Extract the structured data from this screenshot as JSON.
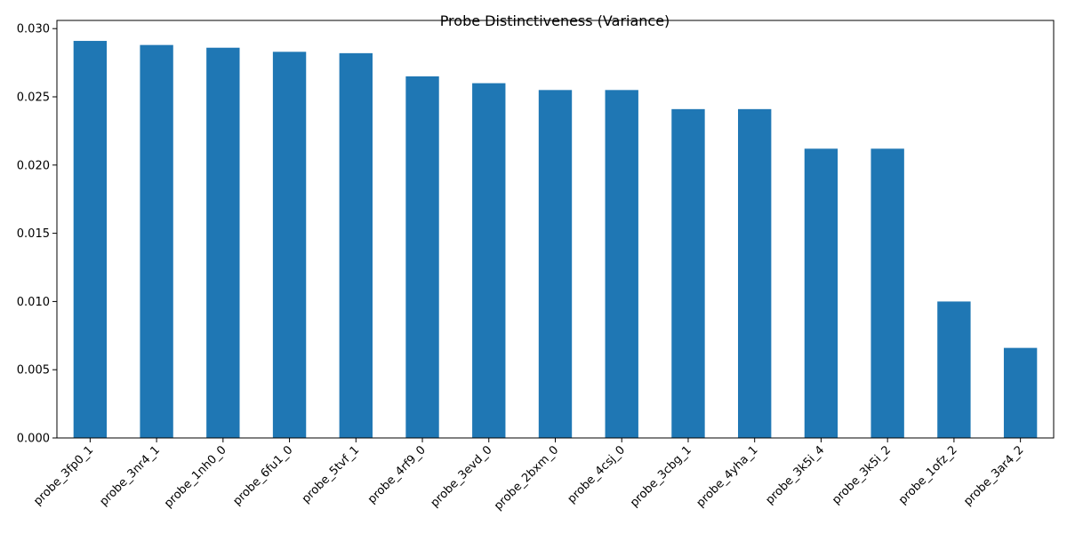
{
  "chart_data": {
    "type": "bar",
    "title": "Probe Distinctiveness (Variance)",
    "xlabel": "",
    "ylabel": "",
    "categories": [
      "probe_3fp0_1",
      "probe_3nr4_1",
      "probe_1nh0_0",
      "probe_6fu1_0",
      "probe_5tvf_1",
      "probe_4rf9_0",
      "probe_3evd_0",
      "probe_2bxm_0",
      "probe_4csj_0",
      "probe_3cbg_1",
      "probe_4yha_1",
      "probe_3k5i_4",
      "probe_3k5i_2",
      "probe_1ofz_2",
      "probe_3ar4_2"
    ],
    "values": [
      0.0291,
      0.0288,
      0.0286,
      0.0283,
      0.0282,
      0.0265,
      0.026,
      0.0255,
      0.0255,
      0.0241,
      0.0241,
      0.0212,
      0.0212,
      0.01,
      0.0066
    ],
    "ylim": [
      0,
      0.0306
    ],
    "yticks": [
      "0.000",
      "0.005",
      "0.010",
      "0.015",
      "0.020",
      "0.025",
      "0.030"
    ],
    "ytick_values": [
      0,
      0.005,
      0.01,
      0.015,
      0.02,
      0.025,
      0.03
    ],
    "bar_color": "#1f77b4",
    "grid": false,
    "legend": false
  }
}
